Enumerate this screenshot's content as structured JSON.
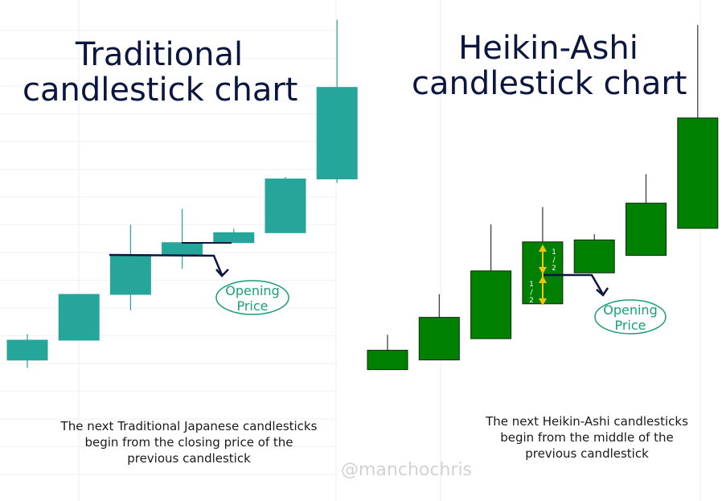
{
  "left_panel": {
    "title_line1": "Traditional",
    "title_line2": "candlestick chart",
    "annotation": {
      "line1": "Opening",
      "line2": "Price"
    },
    "caption": {
      "line1": "The next Traditional Japanese candlesticks",
      "line2": "begin from the closing price of the",
      "line3": "previous candlestick"
    }
  },
  "right_panel": {
    "title_line1": "Heikin-Ashi",
    "title_line2": "candlestick chart",
    "annotation": {
      "line1": "Opening",
      "line2": "Price"
    },
    "half_markers": [
      "1/2",
      "1/2"
    ],
    "caption": {
      "line1": "The next Heikin-Ashi candlesticks",
      "line2": "begin from the middle of the",
      "line3": "previous candlestick"
    }
  },
  "watermark": "@manchochris",
  "colors": {
    "traditional_body": "#26a69a",
    "heikin_ashi_body": "#008000",
    "annotation": "#1a9e75",
    "arrow_line": "#0b1640",
    "half_marker": "#f5c400"
  },
  "chart_data": [
    {
      "type": "candlestick",
      "title": "Traditional candlestick chart",
      "candles": [
        {
          "open": 1.0,
          "close": 2.0,
          "low": 0.6,
          "high": 2.3
        },
        {
          "open": 2.0,
          "close": 4.3,
          "low": 2.0,
          "high": 4.3
        },
        {
          "open": 4.3,
          "close": 6.3,
          "low": 3.5,
          "high": 7.8
        },
        {
          "open": 6.3,
          "close": 6.9,
          "low": 5.6,
          "high": 8.6
        },
        {
          "open": 6.9,
          "close": 7.4,
          "low": 6.9,
          "high": 7.6
        },
        {
          "open": 7.4,
          "close": 10.1,
          "low": 7.4,
          "high": 10.2
        },
        {
          "open": 10.1,
          "close": 14.7,
          "low": 9.9,
          "high": 18.1
        }
      ]
    },
    {
      "type": "candlestick",
      "title": "Heikin-Ashi candlestick chart",
      "candles": [
        {
          "open": 1.0,
          "close": 2.0,
          "low": 1.0,
          "high": 2.8
        },
        {
          "open": 1.5,
          "close": 3.7,
          "low": 1.5,
          "high": 4.9
        },
        {
          "open": 2.6,
          "close": 6.1,
          "low": 2.6,
          "high": 8.5
        },
        {
          "open": 4.4,
          "close": 7.6,
          "low": 4.4,
          "high": 9.4
        },
        {
          "open": 6.0,
          "close": 7.7,
          "low": 6.0,
          "high": 8.0
        },
        {
          "open": 6.9,
          "close": 9.6,
          "low": 6.9,
          "high": 11.1
        },
        {
          "open": 8.3,
          "close": 14.0,
          "low": 8.3,
          "high": 18.8
        }
      ]
    }
  ]
}
